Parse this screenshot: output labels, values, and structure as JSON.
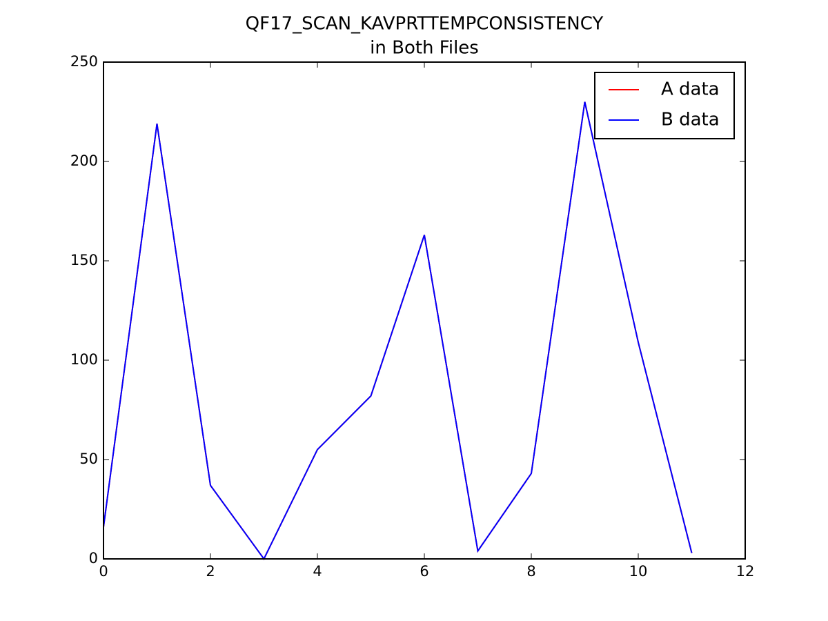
{
  "chart_data": {
    "type": "line",
    "title": [
      "QF17_SCAN_KAVPRTTEMPCONSISTENCY",
      "in Both Files"
    ],
    "x": [
      0,
      1,
      2,
      3,
      4,
      5,
      6,
      7,
      8,
      9,
      10,
      11
    ],
    "series": [
      {
        "name": "A data",
        "color": "#ff0000",
        "values": [
          16,
          219,
          37,
          0,
          55,
          82,
          163,
          4,
          43,
          230,
          109,
          3
        ]
      },
      {
        "name": "B data",
        "color": "#0000ff",
        "values": [
          16,
          219,
          37,
          0,
          55,
          82,
          163,
          4,
          43,
          230,
          109,
          3
        ]
      }
    ],
    "xlim": [
      0,
      12
    ],
    "xticks": [
      0,
      2,
      4,
      6,
      8,
      10,
      12
    ],
    "ylim": [
      0,
      250
    ],
    "yticks": [
      0,
      50,
      100,
      150,
      200,
      250
    ],
    "grid": false,
    "legend": "upper right"
  }
}
